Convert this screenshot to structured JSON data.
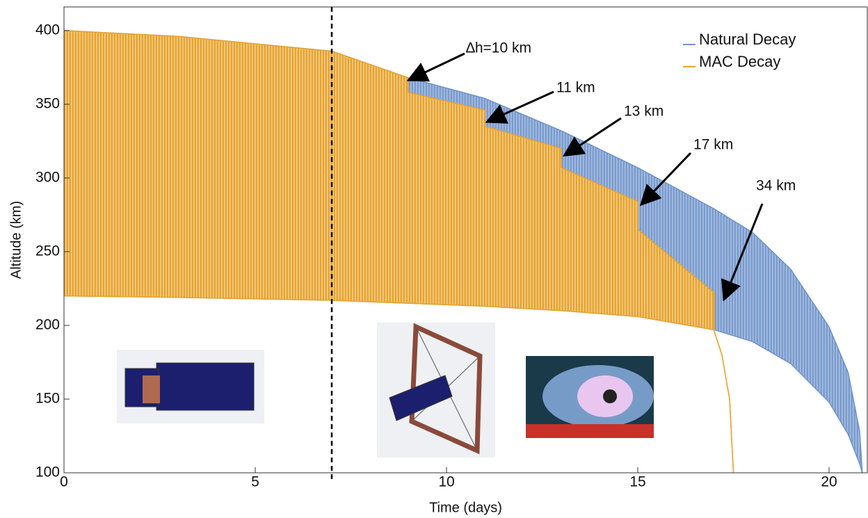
{
  "chart_data": {
    "type": "band",
    "x_label": "Time (days)",
    "y_label": "Altitude (km)",
    "xlim": [
      0,
      21
    ],
    "ylim": [
      100,
      416
    ],
    "xticks": [
      0,
      5,
      10,
      15,
      20
    ],
    "yticks": [
      100,
      150,
      200,
      250,
      300,
      350,
      400
    ],
    "marker_x": 7,
    "legend": "top-right",
    "series": [
      {
        "name": "Natural Decay",
        "color": "#6f93c9",
        "x": [
          0,
          3,
          7,
          9,
          11,
          13,
          15,
          17,
          18,
          19,
          20,
          20.5,
          20.8,
          20.87
        ],
        "upper": [
          400,
          396,
          386,
          368,
          354,
          332,
          307,
          279,
          263,
          238,
          199,
          168,
          128,
          100
        ],
        "lower": [
          220,
          219,
          217,
          215,
          213,
          210,
          206,
          197,
          189,
          174,
          148,
          126,
          106,
          100
        ]
      },
      {
        "name": "MAC Decay",
        "color": "#e9a32e",
        "x": [
          0,
          3,
          7,
          9,
          9,
          11,
          11,
          13,
          13,
          15,
          15,
          17,
          17,
          17.2,
          17.4,
          17.5
        ],
        "upper": [
          400,
          396,
          386,
          368,
          358,
          346,
          335,
          320,
          307,
          284,
          265,
          222,
          196,
          180,
          150,
          100
        ],
        "lower": [
          220,
          219,
          217,
          215,
          215,
          213,
          213,
          210,
          210,
          206,
          206,
          197,
          196,
          180,
          150,
          100
        ]
      }
    ],
    "annotations": [
      "∆h=10 km",
      "11 km",
      "13 km",
      "17 km",
      "34 km"
    ]
  }
}
